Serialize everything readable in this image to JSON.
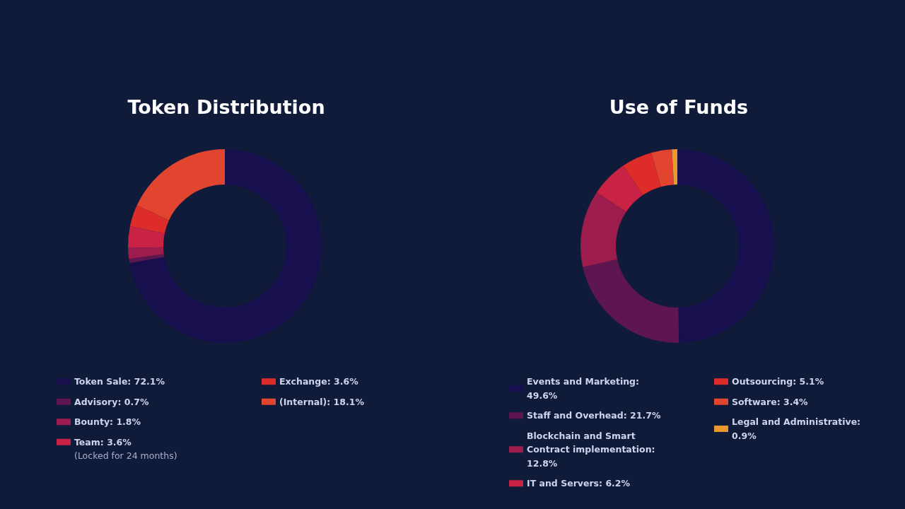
{
  "chart_data": [
    {
      "type": "donut",
      "title": "Token Distribution",
      "categories": [
        "Token Sale: 72.1%",
        "Advisory: 0.7%",
        "Bounty: 1.8%",
        "Team: 3.6%",
        "Exchange: 3.6%",
        "(Internal): 18.1%"
      ],
      "values": [
        72.1,
        0.7,
        1.8,
        3.6,
        3.6,
        18.1
      ],
      "colors": [
        "#170f4e",
        "#5e1650",
        "#9c1c4e",
        "#c82245",
        "#de2c2a",
        "#e2452f"
      ],
      "annotations": [
        "(Locked for 24 months)"
      ],
      "legend": "bottom"
    },
    {
      "type": "donut",
      "title": "Use of Funds",
      "categories": [
        "Events and Marketing: 49.6%",
        "Staff and Overhead: 21.7%",
        "Blockchain and Smart Contract implementation: 12.8%",
        "IT and Servers: 6.2%",
        "Outsourcing: 5.1%",
        "Software: 3.4%",
        "Legal and Administrative: 0.9%"
      ],
      "values": [
        49.6,
        21.7,
        12.8,
        6.2,
        5.1,
        3.4,
        0.9
      ],
      "colors": [
        "#170f4e",
        "#5e1650",
        "#9c1c4e",
        "#c82245",
        "#de2c2a",
        "#e2452f",
        "#e8982e"
      ],
      "legend": "bottom"
    }
  ]
}
